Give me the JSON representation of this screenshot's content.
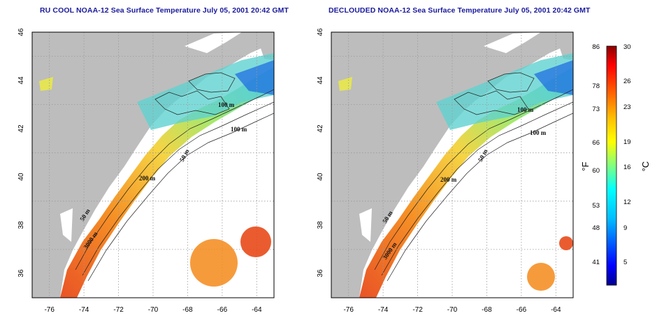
{
  "left_map": {
    "title": "RU COOL NOAA-12 Sea Surface Temperature July 05, 2001 20:42 GMT",
    "isobath_labels": [
      "100 m",
      "100 m",
      "50 m",
      "200 m",
      "50 m",
      "3000 m"
    ]
  },
  "right_map": {
    "title": "DECLOUDED NOAA-12 Sea Surface Temperature July 05, 2001 20:42 GMT",
    "isobath_labels": [
      "100 m",
      "100 m",
      "50 m",
      "200 m",
      "50 m",
      "3000 m"
    ]
  },
  "axes": {
    "x_ticks": [
      "-76",
      "-74",
      "-72",
      "-70",
      "-68",
      "-66",
      "-64"
    ],
    "y_ticks": [
      "36",
      "38",
      "40",
      "42",
      "44",
      "46"
    ],
    "lon_range": [
      -77,
      -63
    ],
    "lat_range": [
      35,
      46
    ],
    "grid": "dotted"
  },
  "colorbar": {
    "unit_f": "°F",
    "unit_c": "°C",
    "f_labels": [
      "86",
      "78",
      "73",
      "66",
      "60",
      "53",
      "48",
      "41"
    ],
    "c_labels": [
      "30",
      "26",
      "23",
      "19",
      "16",
      "12",
      "9",
      "5"
    ],
    "c_range": [
      2,
      30
    ],
    "colors": [
      "#00008f",
      "#0000ff",
      "#00bfff",
      "#00ffff",
      "#80ff80",
      "#ffff00",
      "#ffbf00",
      "#ff6600",
      "#ff0000",
      "#8b0000"
    ]
  },
  "colors": {
    "land": "#bdbdbd",
    "frame": "#000000"
  }
}
